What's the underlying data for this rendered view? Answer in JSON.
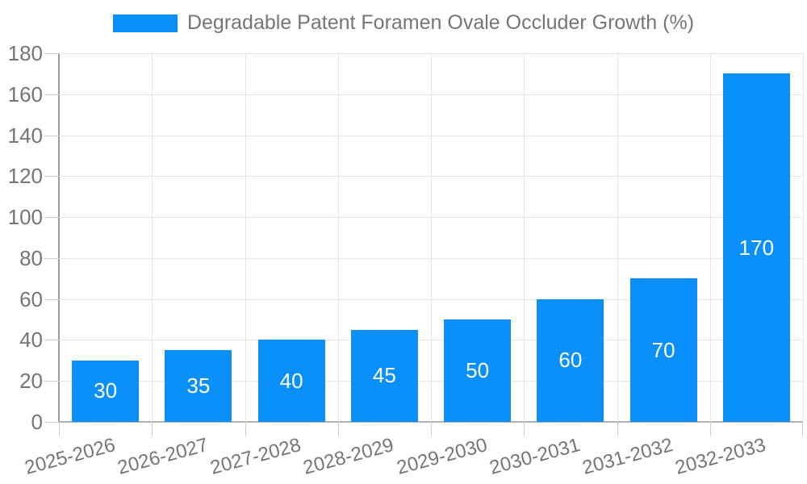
{
  "chart_data": {
    "type": "bar",
    "title": "Degradable Patent Foramen Ovale Occluder Growth (%)",
    "legend_entries": [
      "Degradable Patent Foramen Ovale Occluder Growth (%)"
    ],
    "legend_position": "top",
    "categories": [
      "2025-2026",
      "2026-2027",
      "2027-2028",
      "2028-2029",
      "2029-2030",
      "2030-2031",
      "2031-2032",
      "2032-2033"
    ],
    "values": [
      30,
      35,
      40,
      45,
      50,
      60,
      70,
      170
    ],
    "bar_labels": [
      "30",
      "35",
      "40",
      "45",
      "50",
      "60",
      "70",
      "170"
    ],
    "xlabel": "",
    "ylabel": "",
    "ylim": [
      0,
      180
    ],
    "ytick_interval": 20,
    "yticks": [
      0,
      20,
      40,
      60,
      80,
      100,
      120,
      140,
      160,
      180
    ],
    "grid": true,
    "x_label_rotation_deg": -15,
    "colors": {
      "bar": "#0b90f9",
      "bar_label": "#ffffff",
      "axis_label": "#757575",
      "gridline": "#e6e6e6",
      "axis_line": "#b3b3b3",
      "axis_line_dark": "#9a9a9a",
      "tick": "#cccccc",
      "background": "#ffffff"
    }
  }
}
